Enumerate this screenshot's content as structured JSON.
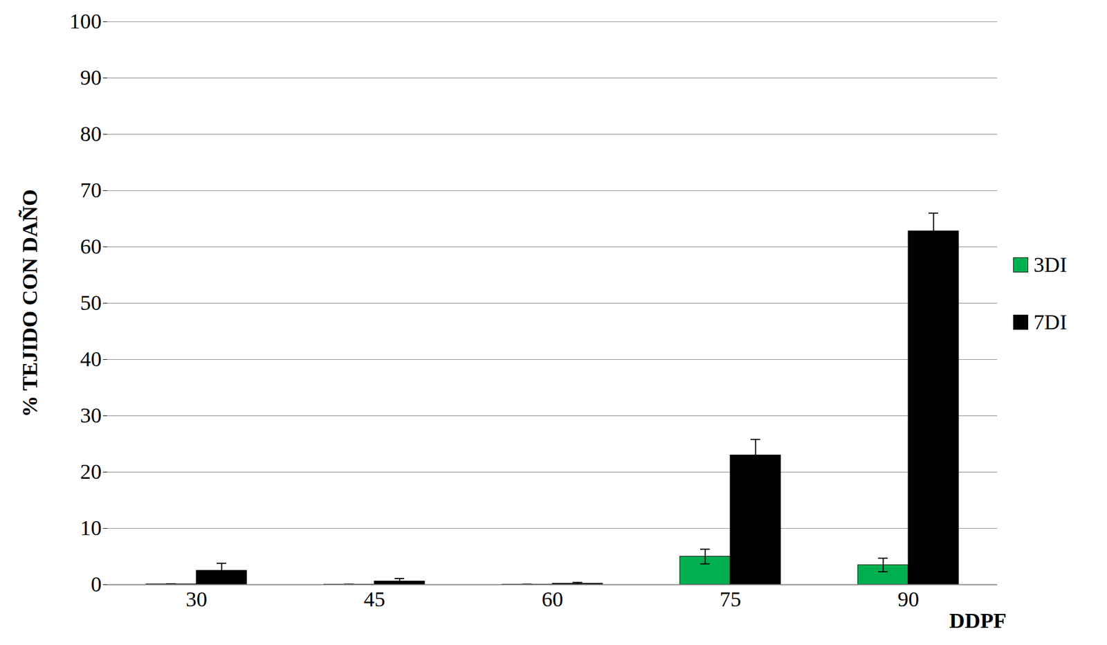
{
  "chart_data": {
    "type": "bar",
    "y_label": "% TEJIDO CON DAÑO",
    "x_label": "DDPF",
    "categories": [
      30,
      45,
      60,
      75,
      90
    ],
    "series": [
      {
        "name": "3DI",
        "color": "#00b050",
        "values": [
          0.1,
          0.05,
          0.05,
          5.0,
          3.5
        ],
        "errors": [
          0.05,
          0.05,
          0.05,
          1.3,
          1.2
        ]
      },
      {
        "name": "7DI",
        "color": "#000000",
        "values": [
          2.5,
          0.6,
          0.2,
          23.0,
          62.8
        ],
        "errors": [
          1.3,
          0.5,
          0.2,
          2.8,
          3.2
        ]
      }
    ],
    "ylim": [
      0,
      100
    ],
    "yticks": [
      0,
      10,
      20,
      30,
      40,
      50,
      60,
      70,
      80,
      90,
      100
    ],
    "grid": true,
    "legend": "right"
  }
}
